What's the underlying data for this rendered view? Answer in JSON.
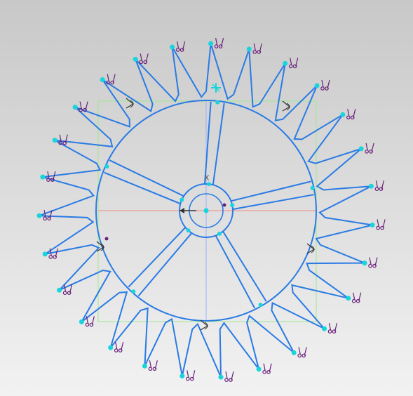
{
  "colors": {
    "background_top": "#c8c8c8",
    "background_bottom": "#f2f2f2",
    "sketch_line": "#2a7be4",
    "endpoint": "#19d4dc",
    "constraint": "#6a1f7a",
    "bounding_box": "#9ee88f",
    "axis_horizontal": "#f08a8a",
    "axis_vertical": "#9ab0ff",
    "dimension_marker": "#333333"
  },
  "icons": {
    "constraint_glyph": "coincident-constraint-icon",
    "angle_glyph": "angle-constraint-icon",
    "origin_glyph": "origin-axis-icon",
    "selected_point": "selected-point-icon"
  },
  "sketch": {
    "teeth_count": 27,
    "spokes_count": 5,
    "axis_label": "X"
  }
}
